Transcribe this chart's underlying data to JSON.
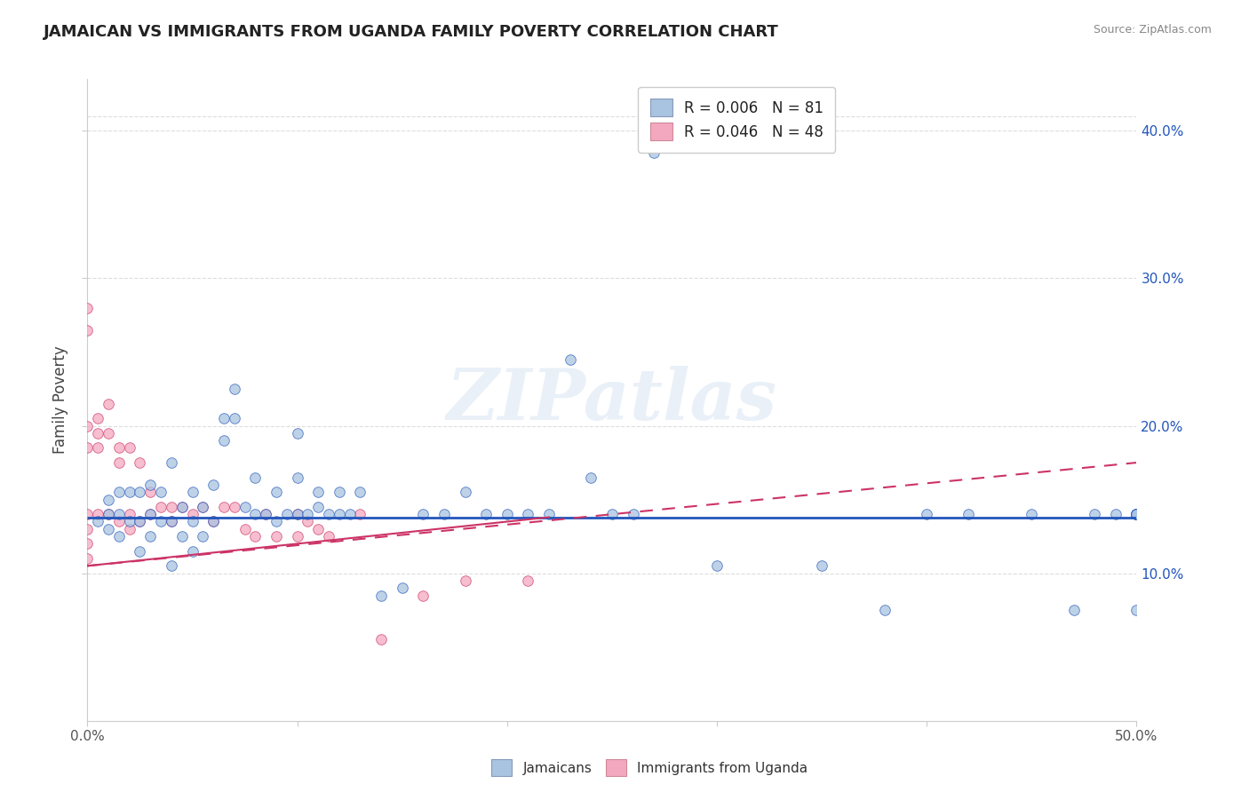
{
  "title": "JAMAICAN VS IMMIGRANTS FROM UGANDA FAMILY POVERTY CORRELATION CHART",
  "source": "Source: ZipAtlas.com",
  "ylabel": "Family Poverty",
  "right_yticks": [
    "40.0%",
    "30.0%",
    "20.0%",
    "10.0%"
  ],
  "right_ytick_vals": [
    0.4,
    0.3,
    0.2,
    0.1
  ],
  "xlim": [
    0.0,
    0.5
  ],
  "ylim": [
    0.0,
    0.435
  ],
  "legend_line1": "R = 0.006   N = 81",
  "legend_line2": "R = 0.046   N = 48",
  "jamaican_color": "#a8c4e0",
  "uganda_color": "#f4a8c0",
  "trend_jamaican_color": "#2255bb",
  "trend_uganda_color": "#cc3366",
  "watermark": "ZIPatlas",
  "jamaican_points_x": [
    0.005,
    0.01,
    0.01,
    0.01,
    0.015,
    0.015,
    0.015,
    0.02,
    0.02,
    0.025,
    0.025,
    0.025,
    0.03,
    0.03,
    0.03,
    0.035,
    0.035,
    0.04,
    0.04,
    0.04,
    0.045,
    0.045,
    0.05,
    0.05,
    0.05,
    0.055,
    0.055,
    0.06,
    0.06,
    0.065,
    0.065,
    0.07,
    0.07,
    0.075,
    0.08,
    0.08,
    0.085,
    0.09,
    0.09,
    0.095,
    0.1,
    0.1,
    0.1,
    0.105,
    0.11,
    0.11,
    0.115,
    0.12,
    0.12,
    0.125,
    0.13,
    0.14,
    0.15,
    0.16,
    0.17,
    0.18,
    0.19,
    0.2,
    0.21,
    0.22,
    0.23,
    0.24,
    0.25,
    0.26,
    0.27,
    0.3,
    0.35,
    0.38,
    0.4,
    0.42,
    0.45,
    0.47,
    0.48,
    0.49,
    0.5,
    0.5,
    0.5,
    0.5,
    0.5,
    0.5,
    0.5
  ],
  "jamaican_points_y": [
    0.135,
    0.13,
    0.14,
    0.15,
    0.125,
    0.14,
    0.155,
    0.135,
    0.155,
    0.115,
    0.135,
    0.155,
    0.125,
    0.14,
    0.16,
    0.135,
    0.155,
    0.105,
    0.135,
    0.175,
    0.125,
    0.145,
    0.115,
    0.135,
    0.155,
    0.125,
    0.145,
    0.135,
    0.16,
    0.19,
    0.205,
    0.205,
    0.225,
    0.145,
    0.14,
    0.165,
    0.14,
    0.135,
    0.155,
    0.14,
    0.14,
    0.165,
    0.195,
    0.14,
    0.145,
    0.155,
    0.14,
    0.14,
    0.155,
    0.14,
    0.155,
    0.085,
    0.09,
    0.14,
    0.14,
    0.155,
    0.14,
    0.14,
    0.14,
    0.14,
    0.245,
    0.165,
    0.14,
    0.14,
    0.385,
    0.105,
    0.105,
    0.075,
    0.14,
    0.14,
    0.14,
    0.075,
    0.14,
    0.14,
    0.075,
    0.14,
    0.14,
    0.14,
    0.14,
    0.14,
    0.14
  ],
  "uganda_points_x": [
    0.0,
    0.0,
    0.0,
    0.0,
    0.0,
    0.0,
    0.0,
    0.0,
    0.005,
    0.005,
    0.005,
    0.005,
    0.01,
    0.01,
    0.01,
    0.015,
    0.015,
    0.015,
    0.02,
    0.02,
    0.02,
    0.025,
    0.025,
    0.03,
    0.03,
    0.035,
    0.04,
    0.04,
    0.045,
    0.05,
    0.055,
    0.06,
    0.065,
    0.07,
    0.075,
    0.08,
    0.085,
    0.09,
    0.1,
    0.1,
    0.105,
    0.11,
    0.115,
    0.13,
    0.14,
    0.16,
    0.18,
    0.21
  ],
  "uganda_points_y": [
    0.28,
    0.265,
    0.2,
    0.185,
    0.14,
    0.13,
    0.12,
    0.11,
    0.205,
    0.195,
    0.185,
    0.14,
    0.215,
    0.195,
    0.14,
    0.185,
    0.175,
    0.135,
    0.185,
    0.14,
    0.13,
    0.175,
    0.135,
    0.155,
    0.14,
    0.145,
    0.135,
    0.145,
    0.145,
    0.14,
    0.145,
    0.135,
    0.145,
    0.145,
    0.13,
    0.125,
    0.14,
    0.125,
    0.14,
    0.125,
    0.135,
    0.13,
    0.125,
    0.14,
    0.055,
    0.085,
    0.095,
    0.095
  ],
  "background_color": "#ffffff",
  "grid_color": "#dddddd",
  "marker_size": 70,
  "j_trend_start_x": 0.0,
  "j_trend_end_x": 0.5,
  "j_trend_start_y": 0.138,
  "j_trend_end_y": 0.138,
  "u_trend_start_x": 0.0,
  "u_trend_end_x": 0.5,
  "u_trend_start_y": 0.105,
  "u_trend_end_y": 0.175
}
